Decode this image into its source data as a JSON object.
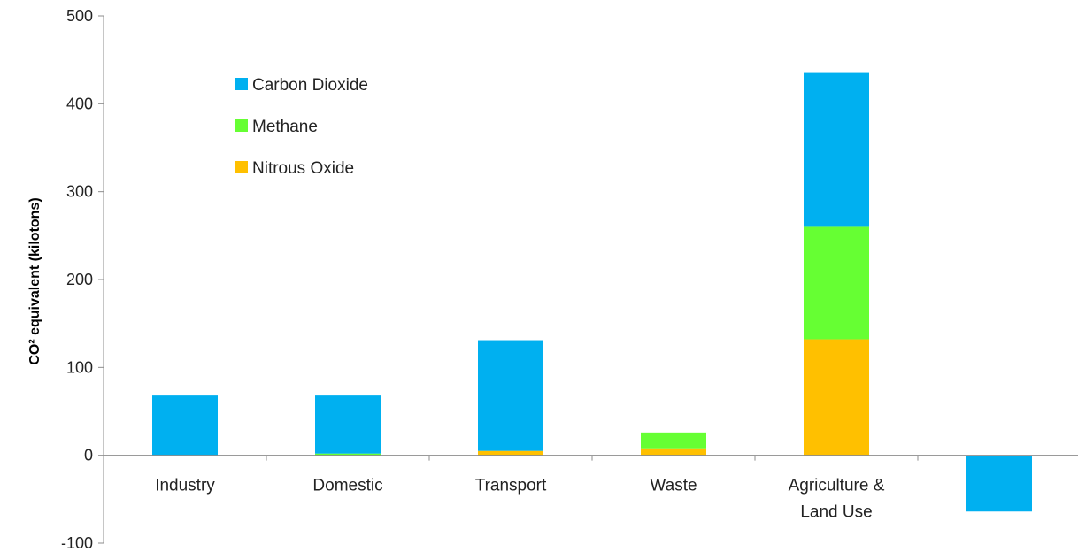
{
  "chart_data": {
    "type": "bar",
    "stacked": true,
    "categories": [
      [
        "Industry"
      ],
      [
        "Domestic"
      ],
      [
        "Transport"
      ],
      [
        "Waste"
      ],
      [
        "Agriculture &",
        "Land Use"
      ],
      [
        ""
      ]
    ],
    "series": [
      {
        "name": "Nitrous Oxide",
        "color": "#FFC000",
        "values": [
          0,
          0,
          5,
          8,
          132,
          0
        ]
      },
      {
        "name": "Methane",
        "color": "#66FF33",
        "values": [
          0,
          2,
          0,
          18,
          128,
          0
        ]
      },
      {
        "name": "Carbon Dioxide",
        "color": "#00B0F0",
        "values": [
          68,
          66,
          126,
          0,
          176,
          -64
        ]
      }
    ],
    "legend_order": [
      "Carbon Dioxide",
      "Methane",
      "Nitrous Oxide"
    ],
    "legend_placement": "inside-top-left",
    "ylabel": "CO² equivalent (kilotons)",
    "ylim": [
      -100,
      500
    ],
    "yticks": [
      -100,
      0,
      100,
      200,
      300,
      400,
      500
    ],
    "grid": false
  }
}
